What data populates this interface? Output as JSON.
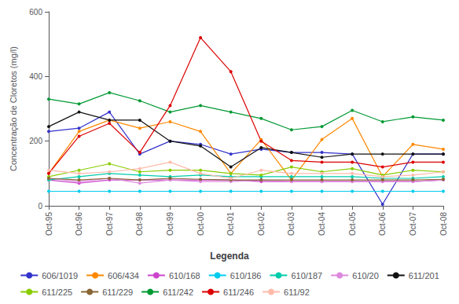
{
  "chart_data": {
    "type": "line",
    "y_label": "Concentração de Cloretos (mg/l)",
    "legend_title": "Legenda",
    "legend": "bottom",
    "grid": false,
    "categories": [
      "Oct-95",
      "Oct-96",
      "Oct-97",
      "Oct-98",
      "Oct-99",
      "Oct-00",
      "Oct-01",
      "Oct-02",
      "Oct-03",
      "Oct-04",
      "Oct-05",
      "Oct-06",
      "Oct-07",
      "Oct-08"
    ],
    "ylim": [
      0,
      600
    ],
    "yticks": [
      0,
      200,
      400,
      600
    ],
    "series": [
      {
        "name": "606/1019",
        "color": "#3333cc",
        "marker": "circle",
        "values": [
          230,
          240,
          290,
          160,
          200,
          190,
          160,
          175,
          165,
          165,
          160,
          5,
          160,
          160
        ]
      },
      {
        "name": "606/434",
        "color": "#ff8800",
        "marker": "circle",
        "values": [
          100,
          230,
          265,
          240,
          260,
          230,
          100,
          205,
          80,
          205,
          270,
          90,
          190,
          175
        ]
      },
      {
        "name": "610/168",
        "color": "#cc44cc",
        "marker": "circle",
        "values": [
          80,
          70,
          80,
          80,
          80,
          80,
          80,
          75,
          75,
          75,
          75,
          75,
          75,
          80
        ]
      },
      {
        "name": "610/186",
        "color": "#00ccee",
        "marker": "circle",
        "values": [
          45,
          45,
          45,
          45,
          45,
          45,
          45,
          45,
          45,
          45,
          45,
          45,
          45,
          45
        ]
      },
      {
        "name": "610/187",
        "color": "#00ccaa",
        "marker": "circle",
        "values": [
          80,
          90,
          100,
          95,
          90,
          95,
          90,
          90,
          90,
          90,
          90,
          85,
          85,
          90
        ]
      },
      {
        "name": "610/20",
        "color": "#dd88dd",
        "marker": "circle",
        "values": [
          85,
          75,
          85,
          70,
          80,
          75,
          75,
          80,
          75,
          75,
          75,
          75,
          75,
          80
        ]
      },
      {
        "name": "611/201",
        "color": "#111111",
        "marker": "circle",
        "values": [
          245,
          290,
          265,
          265,
          200,
          185,
          120,
          180,
          165,
          150,
          160,
          160,
          160,
          160
        ]
      },
      {
        "name": "611/225",
        "color": "#88cc00",
        "marker": "circle",
        "values": [
          90,
          110,
          130,
          105,
          110,
          110,
          100,
          95,
          120,
          105,
          115,
          95,
          110,
          105
        ]
      },
      {
        "name": "611/229",
        "color": "#886633",
        "marker": "circle",
        "values": [
          85,
          80,
          85,
          80,
          85,
          82,
          80,
          80,
          80,
          80,
          80,
          80,
          80,
          82
        ]
      },
      {
        "name": "611/242",
        "color": "#009933",
        "marker": "circle",
        "values": [
          330,
          315,
          350,
          325,
          290,
          310,
          290,
          270,
          235,
          245,
          295,
          260,
          275,
          265
        ]
      },
      {
        "name": "611/246",
        "color": "#dd0000",
        "marker": "circle",
        "values": [
          100,
          215,
          255,
          165,
          310,
          520,
          415,
          200,
          140,
          135,
          135,
          120,
          135,
          135
        ]
      },
      {
        "name": "611/92",
        "color": "#ffbbaa",
        "marker": "circle",
        "values": [
          110,
          100,
          105,
          115,
          135,
          100,
          85,
          110,
          100,
          100,
          100,
          90,
          95,
          105
        ]
      }
    ]
  }
}
